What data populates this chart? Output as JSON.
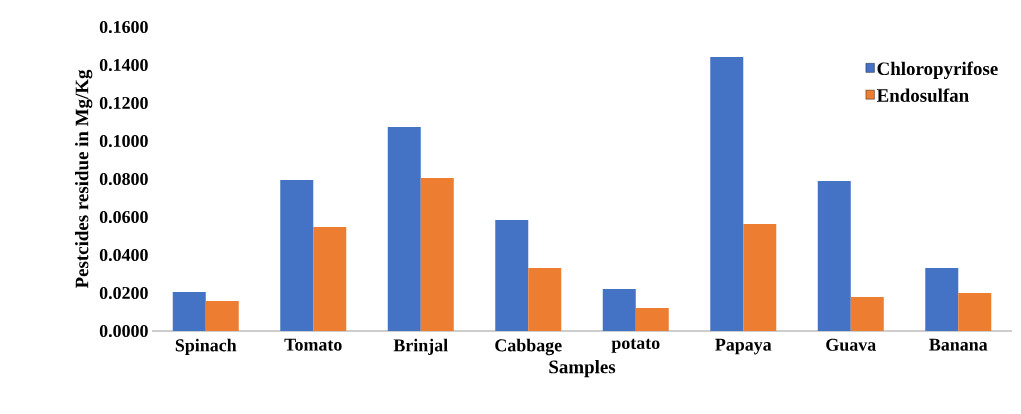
{
  "chart_data": {
    "type": "bar",
    "xlabel": "Samples",
    "ylabel": "Pestcides residue in Mg/Kg",
    "categories": [
      "Spinach",
      "Tomato",
      "Brinjal",
      "Cabbage",
      "potato",
      "Papaya",
      "Guava",
      "Banana"
    ],
    "series": [
      {
        "name": "Chloropyrifose",
        "color": "#4472c4",
        "values": [
          0.0205,
          0.0795,
          0.1074,
          0.0584,
          0.0221,
          0.1442,
          0.079,
          0.0332
        ]
      },
      {
        "name": "Endosulfan",
        "color": "#ed7d31",
        "values": [
          0.0158,
          0.0547,
          0.0805,
          0.0332,
          0.0121,
          0.0563,
          0.0179,
          0.02
        ]
      }
    ],
    "ylim": [
      0,
      0.16
    ],
    "yticks": [
      {
        "value": 0,
        "label": "0.0000"
      },
      {
        "value": 0.02,
        "label": "0.0200"
      },
      {
        "value": 0.04,
        "label": "0.0400"
      },
      {
        "value": 0.06,
        "label": "0.0600"
      },
      {
        "value": 0.08,
        "label": "0.0800"
      },
      {
        "value": 0.1,
        "label": "0.1000"
      },
      {
        "value": 0.12,
        "label": "0.1200"
      },
      {
        "value": 0.14,
        "label": "0.1400"
      },
      {
        "value": 0.16,
        "label": "0.1600"
      }
    ],
    "legend": "top right",
    "grid": false
  }
}
